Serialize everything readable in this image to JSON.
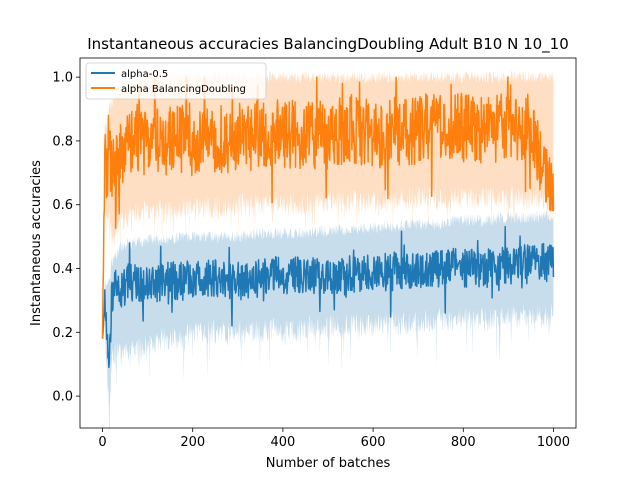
{
  "chart_data": {
    "type": "line",
    "title": "Instantaneous accuracies BalancingDoubling Adult B10 N 10_10",
    "xlabel": "Number of batches",
    "ylabel": "Instantaneous accuracies",
    "xlim": [
      -50,
      1050
    ],
    "ylim": [
      -0.1,
      1.06
    ],
    "xticks": [
      0,
      200,
      400,
      600,
      800,
      1000
    ],
    "yticks": [
      0.0,
      0.2,
      0.4,
      0.6,
      0.8,
      1.0
    ],
    "xtick_labels": [
      "0",
      "200",
      "400",
      "600",
      "800",
      "1000"
    ],
    "ytick_labels": [
      "0.0",
      "0.2",
      "0.4",
      "0.6",
      "0.8",
      "1.0"
    ],
    "grid": false,
    "legend_position": "top-left",
    "series": [
      {
        "name": "alpha-0.5",
        "color": "#1f77b4",
        "x": [
          0,
          5,
          10,
          15,
          20,
          30,
          40,
          60,
          80,
          100,
          120,
          140,
          160,
          180,
          200,
          250,
          300,
          350,
          400,
          450,
          500,
          550,
          600,
          650,
          700,
          750,
          780,
          800,
          850,
          900,
          950,
          980,
          1000
        ],
        "y": [
          0.2,
          0.3,
          0.2,
          0.1,
          0.3,
          0.35,
          0.33,
          0.36,
          0.35,
          0.36,
          0.35,
          0.37,
          0.36,
          0.36,
          0.37,
          0.37,
          0.36,
          0.37,
          0.38,
          0.38,
          0.37,
          0.38,
          0.39,
          0.39,
          0.4,
          0.4,
          0.41,
          0.4,
          0.4,
          0.41,
          0.42,
          0.42,
          0.41
        ],
        "band_lower": [
          0.2,
          0.2,
          0.1,
          -0.05,
          0.1,
          0.15,
          0.12,
          0.15,
          0.15,
          0.16,
          0.17,
          0.18,
          0.18,
          0.18,
          0.2,
          0.2,
          0.2,
          0.2,
          0.21,
          0.21,
          0.22,
          0.22,
          0.22,
          0.23,
          0.23,
          0.24,
          0.24,
          0.24,
          0.24,
          0.25,
          0.25,
          0.25,
          0.25
        ],
        "band_upper": [
          0.2,
          0.35,
          0.35,
          0.35,
          0.42,
          0.44,
          0.47,
          0.48,
          0.48,
          0.49,
          0.49,
          0.49,
          0.49,
          0.5,
          0.5,
          0.5,
          0.5,
          0.51,
          0.51,
          0.51,
          0.52,
          0.52,
          0.53,
          0.53,
          0.54,
          0.54,
          0.55,
          0.55,
          0.55,
          0.56,
          0.56,
          0.56,
          0.56
        ]
      },
      {
        "name": "alpha BalancingDoubling",
        "color": "#ff7f0e",
        "x": [
          0,
          5,
          10,
          15,
          20,
          30,
          40,
          60,
          80,
          100,
          120,
          140,
          160,
          180,
          200,
          250,
          300,
          350,
          400,
          450,
          500,
          550,
          600,
          650,
          700,
          750,
          800,
          850,
          900,
          950,
          1000
        ],
        "y": [
          0.2,
          0.8,
          0.7,
          0.75,
          0.72,
          0.74,
          0.76,
          0.78,
          0.8,
          0.8,
          0.81,
          0.8,
          0.81,
          0.81,
          0.81,
          0.81,
          0.81,
          0.82,
          0.82,
          0.82,
          0.82,
          0.83,
          0.83,
          0.83,
          0.83,
          0.84,
          0.84,
          0.84,
          0.84,
          0.84,
          0.6
        ],
        "band_lower": [
          0.2,
          0.6,
          0.55,
          0.55,
          0.5,
          0.52,
          0.55,
          0.56,
          0.58,
          0.58,
          0.58,
          0.58,
          0.58,
          0.59,
          0.59,
          0.59,
          0.6,
          0.6,
          0.6,
          0.6,
          0.61,
          0.61,
          0.61,
          0.61,
          0.62,
          0.62,
          0.62,
          0.62,
          0.62,
          0.62,
          0.6
        ],
        "band_upper": [
          0.2,
          0.85,
          0.85,
          0.9,
          0.92,
          0.95,
          0.97,
          0.98,
          0.99,
          1.0,
          1.0,
          1.0,
          1.0,
          1.0,
          1.0,
          1.0,
          1.0,
          1.0,
          1.0,
          1.0,
          1.0,
          1.0,
          1.0,
          1.0,
          1.0,
          1.0,
          1.0,
          1.0,
          1.0,
          1.0,
          1.0
        ]
      }
    ]
  }
}
